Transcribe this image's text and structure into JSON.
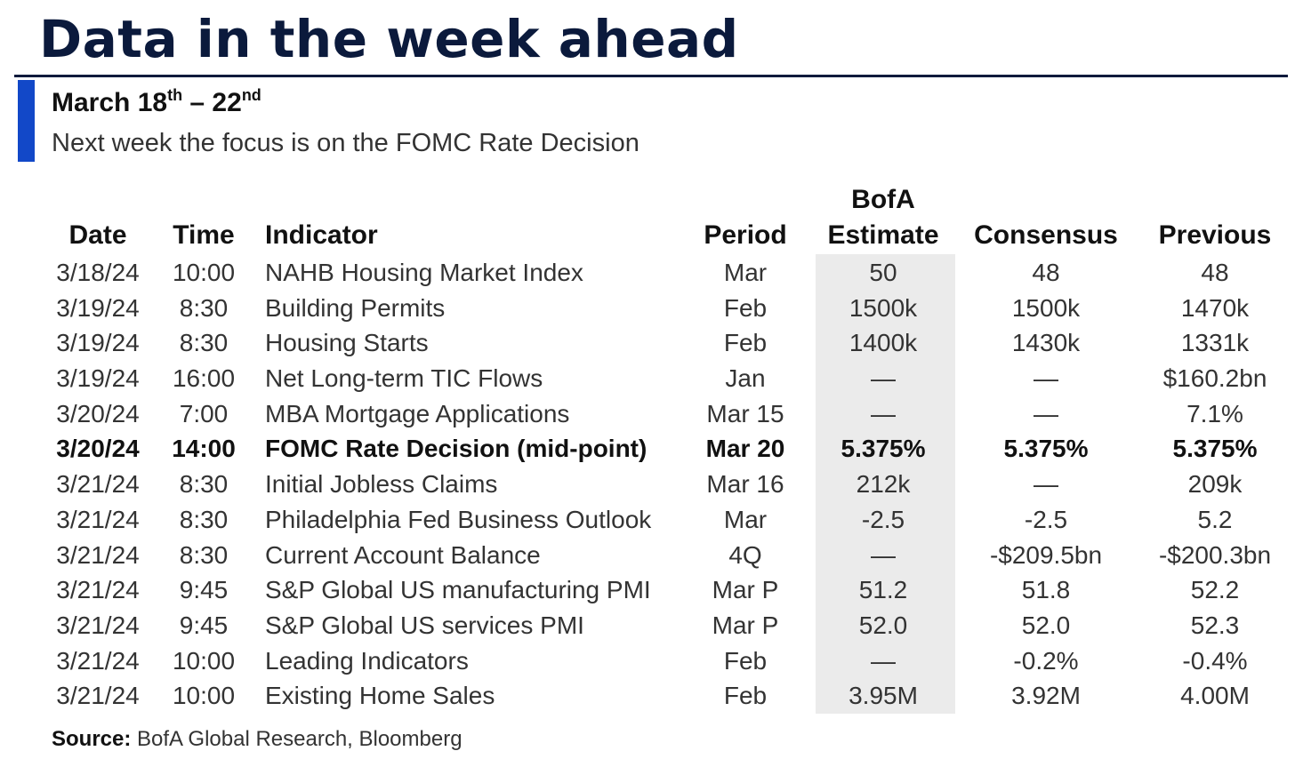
{
  "title": "Data in the week ahead",
  "subtitle": {
    "month": "March 18",
    "sup1": "th",
    "dash": " – 22",
    "sup2": "nd"
  },
  "focus": "Next week the focus is on the FOMC Rate Decision",
  "headers": {
    "date": "Date",
    "time": "Time",
    "indicator": "Indicator",
    "period": "Period",
    "bofa_line1": "BofA",
    "bofa_line2": "Estimate",
    "consensus": "Consensus",
    "previous": "Previous"
  },
  "rows": [
    {
      "date": "3/18/24",
      "time": "10:00",
      "indicator": "NAHB Housing Market Index",
      "period": "Mar",
      "bofa": "50",
      "consensus": "48",
      "previous": "48"
    },
    {
      "date": "3/19/24",
      "time": "8:30",
      "indicator": "Building Permits",
      "period": "Feb",
      "bofa": "1500k",
      "consensus": "1500k",
      "previous": "1470k"
    },
    {
      "date": "3/19/24",
      "time": "8:30",
      "indicator": "Housing Starts",
      "period": "Feb",
      "bofa": "1400k",
      "consensus": "1430k",
      "previous": "1331k"
    },
    {
      "date": "3/19/24",
      "time": "16:00",
      "indicator": "Net Long-term TIC Flows",
      "period": "Jan",
      "bofa": "—",
      "consensus": "—",
      "previous": "$160.2bn"
    },
    {
      "date": "3/20/24",
      "time": "7:00",
      "indicator": "MBA Mortgage Applications",
      "period": "Mar 15",
      "bofa": "—",
      "consensus": "—",
      "previous": "7.1%"
    },
    {
      "date": "3/20/24",
      "time": "14:00",
      "indicator": "FOMC Rate Decision (mid-point)",
      "period": "Mar 20",
      "bofa": "5.375%",
      "consensus": "5.375%",
      "previous": "5.375%"
    },
    {
      "date": "3/21/24",
      "time": "8:30",
      "indicator": "Initial Jobless Claims",
      "period": "Mar 16",
      "bofa": "212k",
      "consensus": "—",
      "previous": "209k"
    },
    {
      "date": "3/21/24",
      "time": "8:30",
      "indicator": "Philadelphia Fed Business Outlook",
      "period": "Mar",
      "bofa": "-2.5",
      "consensus": "-2.5",
      "previous": "5.2"
    },
    {
      "date": "3/21/24",
      "time": "8:30",
      "indicator": "Current Account Balance",
      "period": "4Q",
      "bofa": "—",
      "consensus": "-$209.5bn",
      "previous": "-$200.3bn"
    },
    {
      "date": "3/21/24",
      "time": "9:45",
      "indicator": "S&P Global US manufacturing PMI",
      "period": "Mar P",
      "bofa": "51.2",
      "consensus": "51.8",
      "previous": "52.2"
    },
    {
      "date": "3/21/24",
      "time": "9:45",
      "indicator": "S&P Global US services PMI",
      "period": "Mar P",
      "bofa": "52.0",
      "consensus": "52.0",
      "previous": "52.3"
    },
    {
      "date": "3/21/24",
      "time": "10:00",
      "indicator": "Leading Indicators",
      "period": "Feb",
      "bofa": "—",
      "consensus": "-0.2%",
      "previous": "-0.4%"
    },
    {
      "date": "3/21/24",
      "time": "10:00",
      "indicator": "Existing Home Sales",
      "period": "Feb",
      "bofa": "3.95M",
      "consensus": "3.92M",
      "previous": "4.00M"
    }
  ],
  "source": {
    "label": "Source:",
    "text": " BofA Global Research, Bloomberg"
  }
}
